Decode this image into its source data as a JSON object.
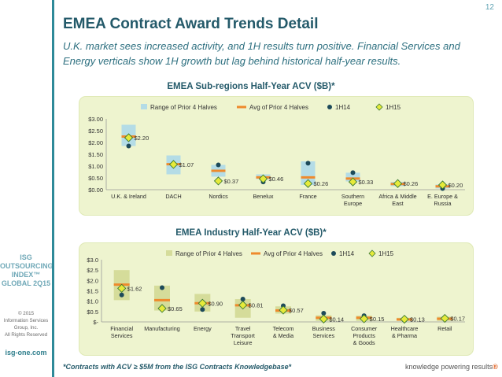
{
  "page_number": "12",
  "title": "EMEA Contract Award Trends Detail",
  "subtitle": "U.K. market sees increased activity, and 1H results turn positive. Financial Services and Energy verticals show 1H growth but lag behind historical half-year results.",
  "sidebar": {
    "logo_lines": [
      "ISG",
      "OUTSOURCING",
      "INDEX™",
      "GLOBAL 2Q15"
    ],
    "copyright_lines": [
      "© 2015",
      "Information Services",
      "Group, Inc.",
      "All Rights Reserved"
    ],
    "site": "isg-one.com"
  },
  "footnote": "*Contracts with ACV ≥ $5M from the ISG Contracts Knowledgebase*",
  "tagline_main": "knowledge powering results",
  "tagline_mark": "®",
  "colors": {
    "range": "#b4dce6",
    "range2": "#d5dc9a",
    "avg": "#ee8a2c",
    "h14": "#1d4a5a",
    "h15_fill": "#e6ea3a",
    "h15_stroke": "#3b7a33"
  },
  "chart_data": [
    {
      "type": "bar",
      "title": "EMEA Sub-regions Half-Year ACV ($B)*",
      "legend": [
        "Range of Prior 4 Halves",
        "Avg of Prior 4 Halves",
        "1H14",
        "1H15"
      ],
      "categories": [
        [
          "U.K. & Ireland"
        ],
        [
          "DACH"
        ],
        [
          "Nordics"
        ],
        [
          "Benelux"
        ],
        [
          "France"
        ],
        [
          "Southern",
          "Europe"
        ],
        [
          "Africa & Middle",
          "East"
        ],
        [
          "E. Europe &",
          "Russia"
        ]
      ],
      "range_low": [
        1.85,
        0.65,
        0.55,
        0.45,
        0.2,
        0.35,
        0.15,
        0.05
      ],
      "range_high": [
        2.75,
        1.45,
        1.05,
        0.65,
        1.2,
        0.72,
        0.33,
        0.22
      ],
      "avg": [
        2.25,
        1.08,
        0.8,
        0.52,
        0.52,
        0.47,
        0.24,
        0.14
      ],
      "h14": [
        1.85,
        1.05,
        1.05,
        0.33,
        1.12,
        0.72,
        0.27,
        0.05
      ],
      "h15": [
        2.2,
        1.07,
        0.37,
        0.46,
        0.26,
        0.33,
        0.26,
        0.2
      ],
      "h15_labels": [
        "$2.20",
        "$1.07",
        "$0.37",
        "$0.46",
        "$0.26",
        "$0.33",
        "$0.26",
        "$0.20"
      ],
      "yticks": [
        "$0.00",
        "$0.50",
        "$1.00",
        "$1.50",
        "$2.00",
        "$2.50",
        "$3.00"
      ],
      "ylim": [
        0,
        3
      ]
    },
    {
      "type": "bar",
      "title": "EMEA Industry Half-Year ACV ($B)*",
      "legend": [
        "Range of Prior 4 Halves",
        "Avg of Prior 4 Halves",
        "1H14",
        "1H15"
      ],
      "categories": [
        [
          "Financial",
          "Services"
        ],
        [
          "Manufacturing"
        ],
        [
          "Energy"
        ],
        [
          "Travel",
          "Transport",
          "Leisure"
        ],
        [
          "Telecom",
          "& Media"
        ],
        [
          "Business",
          "Services"
        ],
        [
          "Consumer",
          "Products",
          "& Goods"
        ],
        [
          "Healthcare",
          "& Pharma"
        ],
        [
          "Retail"
        ]
      ],
      "range_low": [
        1.05,
        0.55,
        0.5,
        0.2,
        0.4,
        0.05,
        0.05,
        0.05,
        0.05
      ],
      "range_high": [
        2.5,
        1.75,
        1.35,
        1.1,
        0.75,
        0.32,
        0.3,
        0.2,
        0.25
      ],
      "avg": [
        1.8,
        1.05,
        0.9,
        0.8,
        0.55,
        0.2,
        0.2,
        0.12,
        0.15
      ],
      "h14": [
        1.3,
        1.65,
        0.6,
        1.1,
        0.78,
        0.42,
        0.3,
        0.08,
        0.12
      ],
      "h15": [
        1.62,
        0.65,
        0.9,
        0.81,
        0.57,
        0.14,
        0.15,
        0.13,
        0.17
      ],
      "h15_labels": [
        "$1.62",
        "$0.65",
        "$0.90",
        "$0.81",
        "$0.57",
        "$0.14",
        "$0.15",
        "$0.13",
        "$0.17"
      ],
      "yticks": [
        "$-",
        "$0.5",
        "$1.0",
        "$1.5",
        "$2.0",
        "$2.5",
        "$3.0"
      ],
      "ylim": [
        0,
        3
      ]
    }
  ]
}
